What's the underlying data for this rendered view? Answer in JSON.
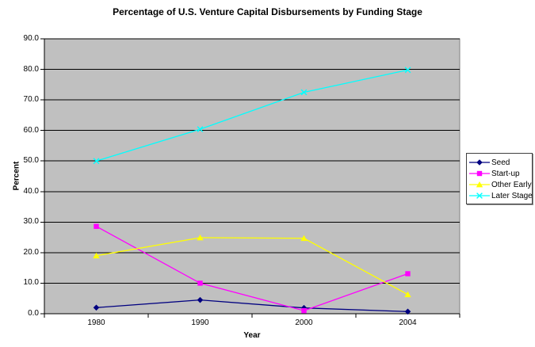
{
  "title": "Percentage of U.S. Venture Capital Disbursements by Funding Stage",
  "chart_data": {
    "type": "line",
    "title": "Percentage of U.S. Venture Capital Disbursements by Funding Stage",
    "xlabel": "Year",
    "ylabel": "Percent",
    "categories": [
      "1980",
      "1990",
      "2000",
      "2004"
    ],
    "series": [
      {
        "name": "Seed",
        "color": "#000080",
        "marker": "diamond",
        "values": [
          2.0,
          4.5,
          1.9,
          0.7
        ]
      },
      {
        "name": "Start-up",
        "color": "#FF00FF",
        "marker": "square",
        "values": [
          28.6,
          10.0,
          1.0,
          13.1
        ]
      },
      {
        "name": "Other Early",
        "color": "#FFFF00",
        "marker": "triangle",
        "values": [
          19.0,
          24.9,
          24.7,
          6.3
        ]
      },
      {
        "name": "Later Stage",
        "color": "#00FFFF",
        "marker": "x",
        "values": [
          50.0,
          60.4,
          72.5,
          79.8
        ]
      }
    ],
    "ylim": [
      0,
      90
    ],
    "y_tick_step": 10,
    "y_tick_labels": [
      "0.0",
      "10.0",
      "20.0",
      "30.0",
      "40.0",
      "50.0",
      "60.0",
      "70.0",
      "80.0",
      "90.0"
    ],
    "grid": true,
    "legend_position": "right",
    "plot_bg_color": "#C0C0C0",
    "plot_border_color": "#808080",
    "grid_color": "#000000",
    "axis_color": "#000000",
    "text_color": "#000000"
  }
}
